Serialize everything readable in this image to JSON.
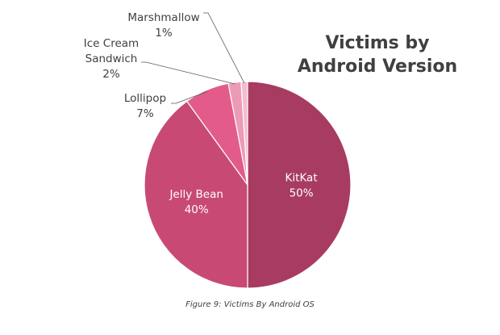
{
  "chart_data": {
    "type": "pie",
    "title": "Victims by Android Version",
    "title_lines": [
      "Victims by",
      "Android Version"
    ],
    "slices": [
      {
        "label": "KitKat",
        "label_lines": [
          "KitKat"
        ],
        "value": 50,
        "value_label": "50%",
        "color": "#a83b62",
        "label_position": "inside"
      },
      {
        "label": "Jelly Bean",
        "label_lines": [
          "Jelly Bean"
        ],
        "value": 40,
        "value_label": "40%",
        "color": "#c84a74",
        "label_position": "inside"
      },
      {
        "label": "Lollipop",
        "label_lines": [
          "Lollipop"
        ],
        "value": 7,
        "value_label": "7%",
        "color": "#e35b8a",
        "label_position": "outside"
      },
      {
        "label": "Ice Cream Sandwich",
        "label_lines": [
          "Ice Cream",
          "Sandwich"
        ],
        "value": 2,
        "value_label": "2%",
        "color": "#ec9bb7",
        "label_position": "outside"
      },
      {
        "label": "Marshmallow",
        "label_lines": [
          "Marshmallow"
        ],
        "value": 1,
        "value_label": "1%",
        "color": "#f3bccd",
        "label_position": "outside"
      }
    ],
    "legend": "none"
  },
  "caption": "Figure 9: Victims By Android OS"
}
